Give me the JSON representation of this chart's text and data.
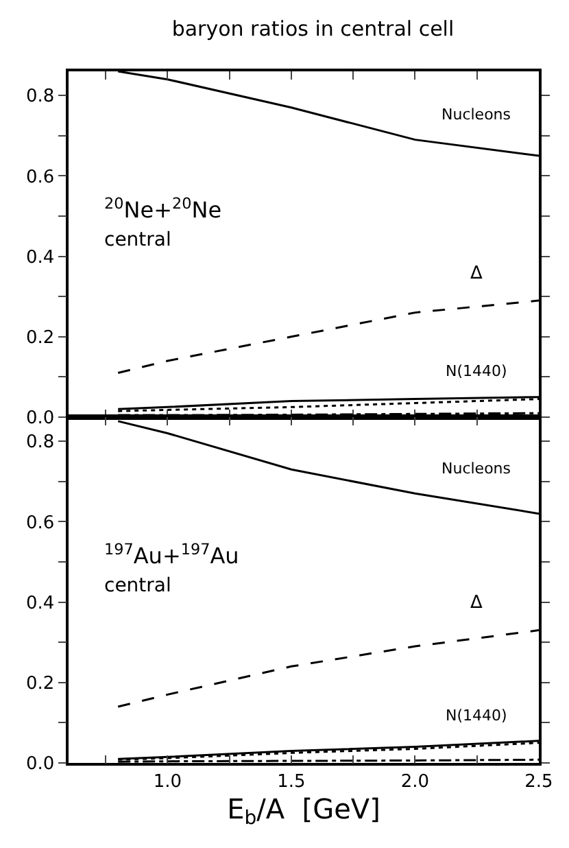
{
  "chart_data": [
    {
      "type": "line",
      "title": "baryon ratios in central cell",
      "x": [
        0.8,
        1.0,
        1.5,
        2.0,
        2.5
      ],
      "xlim": [
        0.6,
        2.5
      ],
      "ylim": [
        0,
        0.86
      ],
      "xticks": [
        {
          "value": 0.75,
          "label": null
        },
        {
          "value": 1.0,
          "label": null
        },
        {
          "value": 1.25,
          "label": null
        },
        {
          "value": 1.5,
          "label": null
        },
        {
          "value": 1.75,
          "label": null
        },
        {
          "value": 2.0,
          "label": null
        },
        {
          "value": 2.25,
          "label": null
        },
        {
          "value": 2.5,
          "label": null
        }
      ],
      "yticks": [
        {
          "value": 0,
          "label": "0.0"
        },
        {
          "value": 0.1,
          "label": null
        },
        {
          "value": 0.2,
          "label": "0.2"
        },
        {
          "value": 0.3,
          "label": null
        },
        {
          "value": 0.4,
          "label": "0.4"
        },
        {
          "value": 0.5,
          "label": null
        },
        {
          "value": 0.6,
          "label": "0.6"
        },
        {
          "value": 0.7,
          "label": null
        },
        {
          "value": 0.8,
          "label": "0.8"
        }
      ],
      "tick_labels": "y",
      "legend": false,
      "marker": "none",
      "annotations": [
        "$^{20}$Ne+$^{20}$Ne",
        "central"
      ],
      "series": [
        {
          "name": "Nucleons",
          "color": "#000000",
          "line_style": "solid",
          "values": [
            0.86,
            0.84,
            0.77,
            0.69,
            0.65
          ]
        },
        {
          "name": "Δ",
          "color": "#000000",
          "line_style": "dashed",
          "values": [
            0.11,
            0.14,
            0.2,
            0.26,
            0.29
          ]
        },
        {
          "name": "N(1440)",
          "color": "#000000",
          "line_style": "solid",
          "values": [
            0.02,
            0.025,
            0.04,
            0.045,
            0.05
          ]
        },
        {
          "color": "#000000",
          "line_style": "dotted",
          "values": [
            0.015,
            0.018,
            0.025,
            0.035,
            0.045
          ]
        },
        {
          "color": "#000000",
          "line_style": "dashdot",
          "values": [
            0.005,
            0.005,
            0.006,
            0.008,
            0.01
          ]
        }
      ]
    },
    {
      "type": "line",
      "x": [
        0.8,
        1.0,
        1.5,
        2.0,
        2.5
      ],
      "xlabel": "E$_{b}$/A  [GeV]",
      "xlim": [
        0.6,
        2.5
      ],
      "ylim": [
        0,
        0.86
      ],
      "xticks": [
        {
          "value": 0.75,
          "label": null
        },
        {
          "value": 1.0,
          "label": "1.0"
        },
        {
          "value": 1.25,
          "label": null
        },
        {
          "value": 1.5,
          "label": "1.5"
        },
        {
          "value": 1.75,
          "label": null
        },
        {
          "value": 2.0,
          "label": "2.0"
        },
        {
          "value": 2.25,
          "label": null
        },
        {
          "value": 2.5,
          "label": "2.5"
        }
      ],
      "yticks": [
        {
          "value": 0,
          "label": "0.0"
        },
        {
          "value": 0.1,
          "label": null
        },
        {
          "value": 0.2,
          "label": "0.2"
        },
        {
          "value": 0.3,
          "label": null
        },
        {
          "value": 0.4,
          "label": "0.4"
        },
        {
          "value": 0.5,
          "label": null
        },
        {
          "value": 0.6,
          "label": "0.6"
        },
        {
          "value": 0.7,
          "label": null
        },
        {
          "value": 0.8,
          "label": "0.8"
        }
      ],
      "legend": false,
      "marker": "none",
      "annotations": [
        "$^{197}$Au+$^{197}$Au",
        "central"
      ],
      "series": [
        {
          "name": "Nucleons",
          "color": "#000000",
          "line_style": "solid",
          "values": [
            0.85,
            0.82,
            0.73,
            0.67,
            0.62
          ]
        },
        {
          "name": "Δ",
          "color": "#000000",
          "line_style": "dashed",
          "values": [
            0.14,
            0.17,
            0.24,
            0.29,
            0.33
          ]
        },
        {
          "name": "N(1440)",
          "color": "#000000",
          "line_style": "solid",
          "values": [
            0.01,
            0.015,
            0.03,
            0.04,
            0.055
          ]
        },
        {
          "color": "#000000",
          "line_style": "dotted",
          "values": [
            0.008,
            0.012,
            0.025,
            0.035,
            0.05
          ]
        },
        {
          "color": "#000000",
          "line_style": "dashdot",
          "values": [
            0.003,
            0.004,
            0.005,
            0.006,
            0.008
          ]
        }
      ]
    }
  ]
}
